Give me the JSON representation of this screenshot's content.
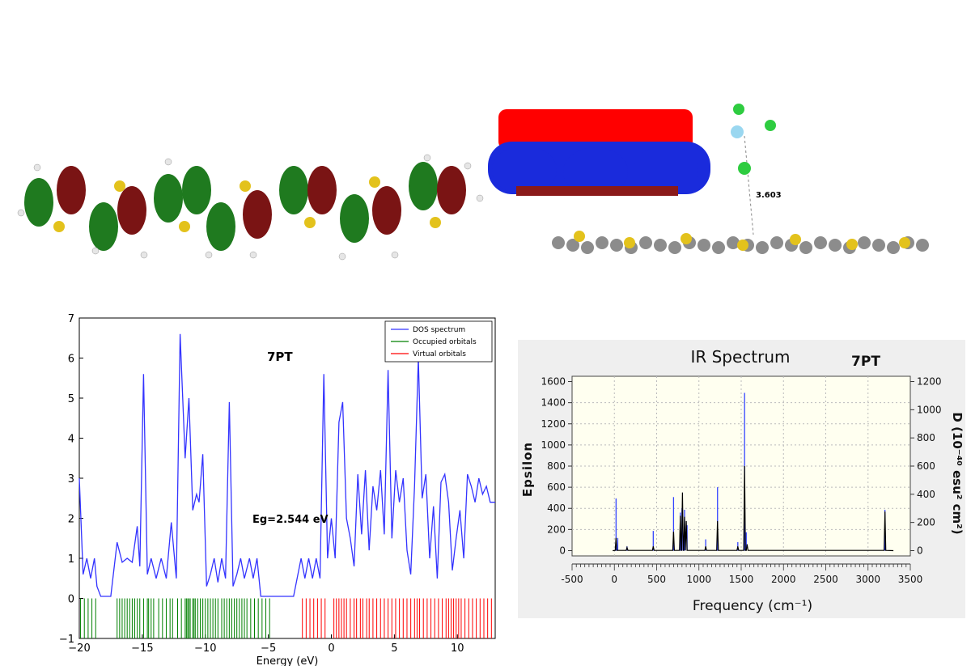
{
  "orbital_figure": {
    "atom_colors": {
      "lobe_green": "#1f7a1f",
      "lobe_red": "#7a1414",
      "sulfur": "#e3c21c",
      "hydrogen": "#e6e6e6"
    }
  },
  "complex_figure": {
    "distance_label": "3.603",
    "colors": {
      "surface_red": "#ff0000",
      "surface_blue": "#1a2bdc",
      "carbon": "#8c8c8c",
      "sulfur": "#e3c21c",
      "chlorine": "#2ecc40",
      "center_atom": "#9ad7f0"
    }
  },
  "chart_data": [
    {
      "type": "line",
      "title": "7PT",
      "xlabel": "Energy (eV)",
      "ylabel": "",
      "xlim": [
        -20,
        13
      ],
      "ylim": [
        -1,
        7
      ],
      "xticks": [
        "−20",
        "−15",
        "−10",
        "−5",
        "0",
        "5",
        "10"
      ],
      "yticks": [
        "−1",
        "0",
        "1",
        "2",
        "3",
        "4",
        "5",
        "6",
        "7"
      ],
      "annotation": "Eg=2.544 eV",
      "legend": [
        "DOS spectrum",
        "Occupied orbitals",
        "Virtual orbitals"
      ],
      "legend_position": "top-right",
      "colors": {
        "dos": "#3333ff",
        "occupied": "#008000",
        "virtual": "#ff0000"
      },
      "series": [
        {
          "name": "DOS spectrum",
          "x": [
            -20,
            -19.7,
            -19.4,
            -19.1,
            -18.8,
            -18.6,
            -18.3,
            -17.5,
            -17.0,
            -16.6,
            -16.2,
            -15.8,
            -15.4,
            -15.2,
            -14.9,
            -14.6,
            -14.3,
            -13.9,
            -13.5,
            -13.1,
            -12.7,
            -12.3,
            -12.0,
            -11.6,
            -11.3,
            -11.0,
            -10.7,
            -10.5,
            -10.2,
            -9.9,
            -9.6,
            -9.3,
            -9.0,
            -8.7,
            -8.4,
            -8.1,
            -7.8,
            -7.5,
            -7.2,
            -6.9,
            -6.5,
            -6.2,
            -5.9,
            -5.6,
            -5.3,
            -5.0,
            -4.6,
            -4.0,
            -3.0,
            -2.4,
            -2.1,
            -1.8,
            -1.5,
            -1.2,
            -0.9,
            -0.6,
            -0.3,
            0.0,
            0.3,
            0.6,
            0.9,
            1.2,
            1.5,
            1.8,
            2.1,
            2.4,
            2.7,
            3.0,
            3.3,
            3.6,
            3.9,
            4.2,
            4.5,
            4.8,
            5.1,
            5.4,
            5.7,
            6.0,
            6.3,
            6.6,
            6.9,
            7.2,
            7.5,
            7.8,
            8.1,
            8.4,
            8.7,
            9.0,
            9.3,
            9.6,
            9.9,
            10.2,
            10.5,
            10.8,
            11.1,
            11.4,
            11.7,
            12.0,
            12.3,
            12.6,
            13.0
          ],
          "y": [
            3.0,
            0.6,
            1.0,
            0.5,
            1.0,
            0.3,
            0.05,
            0.05,
            1.4,
            0.9,
            1.0,
            0.9,
            1.8,
            0.8,
            5.6,
            0.6,
            1.0,
            0.5,
            1.0,
            0.5,
            1.9,
            0.5,
            6.6,
            3.5,
            5.0,
            2.2,
            2.6,
            2.4,
            3.6,
            0.3,
            0.6,
            1.0,
            0.4,
            1.0,
            0.5,
            4.9,
            0.3,
            0.6,
            1.0,
            0.5,
            1.0,
            0.5,
            1.0,
            0.05,
            0.05,
            0.05,
            0.05,
            0.05,
            0.05,
            1.0,
            0.5,
            1.0,
            0.5,
            1.0,
            0.5,
            5.6,
            1.0,
            2.0,
            1.0,
            4.4,
            4.9,
            2.0,
            1.5,
            0.8,
            3.1,
            1.6,
            3.2,
            1.2,
            2.8,
            2.2,
            3.2,
            1.6,
            5.7,
            1.5,
            3.2,
            2.4,
            3.0,
            1.2,
            0.6,
            2.8,
            6.0,
            2.5,
            3.1,
            1.0,
            2.3,
            0.5,
            2.9,
            3.1,
            2.4,
            0.7,
            1.5,
            2.2,
            1.0,
            3.1,
            2.8,
            2.4,
            3.0,
            2.6,
            2.8,
            2.4,
            2.4
          ],
          "x_fixed_note": ""
        }
      ],
      "occupied_levels": [
        -19.9,
        -19.6,
        -19.3,
        -19.0,
        -18.7,
        -17.0,
        -16.8,
        -16.6,
        -16.4,
        -16.2,
        -16.0,
        -15.8,
        -15.6,
        -15.4,
        -15.2,
        -14.9,
        -14.6,
        -14.5,
        -14.3,
        -14.1,
        -13.7,
        -13.4,
        -13.1,
        -12.8,
        -12.6,
        -12.2,
        -11.9,
        -11.6,
        -11.5,
        -11.4,
        -11.3,
        -11.2,
        -11.0,
        -10.9,
        -10.8,
        -10.6,
        -10.4,
        -10.2,
        -10.0,
        -9.8,
        -9.6,
        -9.4,
        -9.2,
        -9.0,
        -8.7,
        -8.5,
        -8.3,
        -8.1,
        -7.9,
        -7.7,
        -7.5,
        -7.3,
        -7.1,
        -6.9,
        -6.7,
        -6.4,
        -6.1,
        -5.8,
        -5.5,
        -5.2,
        -4.9
      ],
      "virtual_levels": [
        -2.3,
        -2.0,
        -1.7,
        -1.4,
        -1.1,
        -0.8,
        -0.5,
        0.2,
        0.4,
        0.6,
        0.8,
        1.0,
        1.2,
        1.5,
        1.8,
        2.0,
        2.3,
        2.5,
        2.8,
        3.0,
        3.3,
        3.6,
        3.9,
        4.2,
        4.5,
        4.8,
        5.1,
        5.4,
        5.7,
        6.0,
        6.3,
        6.6,
        6.8,
        7.0,
        7.3,
        7.6,
        7.9,
        8.2,
        8.5,
        8.8,
        9.1,
        9.3,
        9.5,
        9.7,
        9.9,
        10.1,
        10.3,
        10.6,
        10.9,
        11.2,
        11.5,
        11.8,
        12.1,
        12.4,
        12.7
      ]
    },
    {
      "type": "line",
      "title": "IR Spectrum",
      "subtitle": "7PT",
      "xlabel": "Frequency (cm⁻¹)",
      "ylabel": "Epsilon",
      "y2label": "D (10⁻⁴⁰ esu² cm²)",
      "xlim": [
        -500,
        3500
      ],
      "ylim": [
        -50,
        1650
      ],
      "y2lim": [
        -37.5,
        1237.5
      ],
      "xticks": [
        "-500",
        "0",
        "500",
        "1000",
        "1500",
        "2000",
        "2500",
        "3000",
        "3500"
      ],
      "yticks": [
        "0",
        "200",
        "400",
        "600",
        "800",
        "1000",
        "1200",
        "1400",
        "1600"
      ],
      "y2ticks": [
        "0",
        "200",
        "400",
        "600",
        "800",
        "1000",
        "1200"
      ],
      "grid": true,
      "colors": {
        "epsilon": "#000000",
        "d_sticks": "#3344ff",
        "plot_bg": "#fffff0"
      },
      "series": [
        {
          "name": "Epsilon",
          "peaks_x": [
            20,
            150,
            460,
            700,
            780,
            805,
            830,
            850,
            1080,
            1220,
            1460,
            1540,
            1570,
            3200
          ],
          "peaks_y": [
            120,
            30,
            40,
            180,
            330,
            550,
            320,
            280,
            40,
            280,
            40,
            800,
            60,
            370
          ],
          "baseline_end": 3300
        },
        {
          "name": "D",
          "sticks_x": [
            20,
            40,
            150,
            460,
            700,
            780,
            800,
            830,
            860,
            1080,
            1220,
            1460,
            1540,
            1560,
            3200
          ],
          "sticks_y": [
            370,
            90,
            30,
            140,
            380,
            270,
            300,
            290,
            180,
            80,
            450,
            60,
            1120,
            130,
            290
          ]
        }
      ]
    }
  ]
}
